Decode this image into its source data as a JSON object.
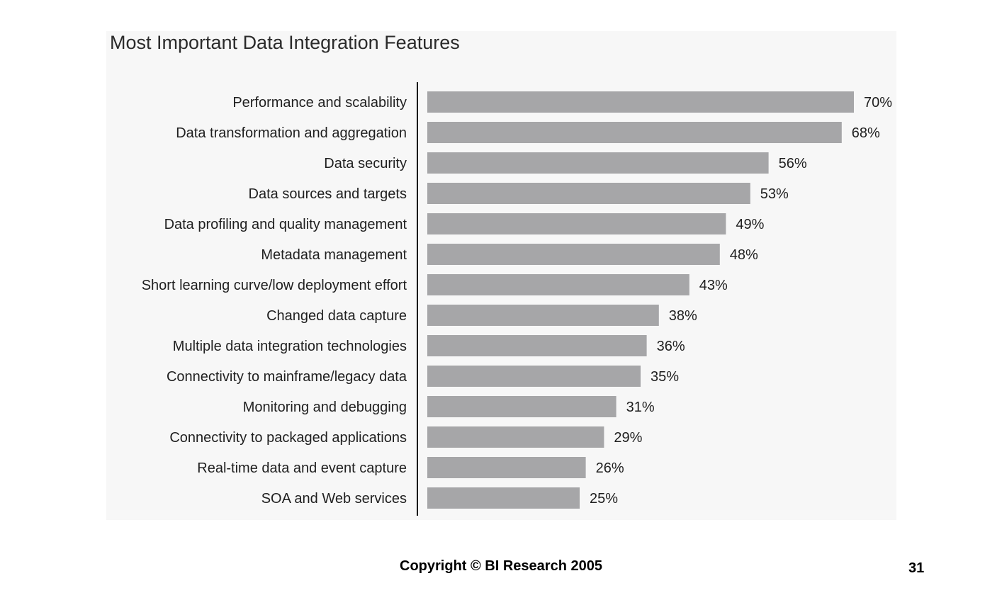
{
  "chart_data": {
    "type": "bar",
    "orientation": "horizontal",
    "title": "Most Important Data Integration Features",
    "categories": [
      "Performance and scalability",
      "Data transformation and aggregation",
      "Data security",
      "Data sources and targets",
      "Data profiling and quality management",
      "Metadata management",
      "Short learning curve/low deployment effort",
      "Changed data capture",
      "Multiple data integration technologies",
      "Connectivity to mainframe/legacy data",
      "Monitoring and debugging",
      "Connectivity to packaged applications",
      "Real-time data and event capture",
      "SOA and Web services"
    ],
    "values": [
      70,
      68,
      56,
      53,
      49,
      48,
      43,
      38,
      36,
      35,
      31,
      29,
      26,
      25
    ],
    "value_labels": [
      "70%",
      "68%",
      "56%",
      "53%",
      "49%",
      "48%",
      "43%",
      "38%",
      "36%",
      "35%",
      "31%",
      "29%",
      "26%",
      "25%"
    ],
    "unit": "%",
    "xlim": [
      0,
      70
    ],
    "grid": false,
    "legend": "none",
    "bar_color": "#a6a6a8"
  },
  "footer": {
    "copyright": "Copyright © BI Research 2005",
    "page_number": "31"
  }
}
